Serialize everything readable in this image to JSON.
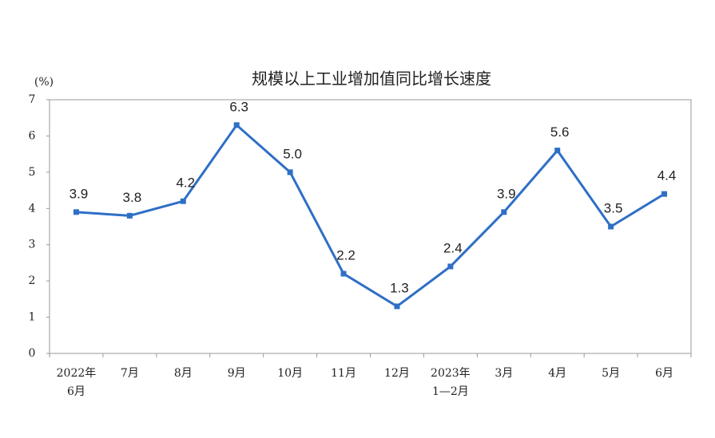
{
  "chart_data": {
    "type": "line",
    "title": "规模以上工业增加值同比增长速度",
    "y_label": "(%)",
    "categories": [
      "2022年\n6月",
      "7月",
      "8月",
      "9月",
      "10月",
      "11月",
      "12月",
      "2023年\n1—2月",
      "3月",
      "4月",
      "5月",
      "6月"
    ],
    "series": [
      {
        "name": "规模以上工业增加值同比增长速度",
        "color": "#2e6fc6",
        "values": [
          3.9,
          3.8,
          4.2,
          6.3,
          5.0,
          2.2,
          1.3,
          2.4,
          3.9,
          5.6,
          3.5,
          4.4
        ],
        "value_labels": [
          "3.9",
          "3.8",
          "4.2",
          "6.3",
          "5.0",
          "2.2",
          "1.3",
          "2.4",
          "3.9",
          "5.6",
          "3.5",
          "4.4"
        ]
      }
    ],
    "ylim": [
      0,
      7
    ],
    "yticks": [
      0,
      1,
      2,
      3,
      4,
      5,
      6,
      7
    ]
  }
}
